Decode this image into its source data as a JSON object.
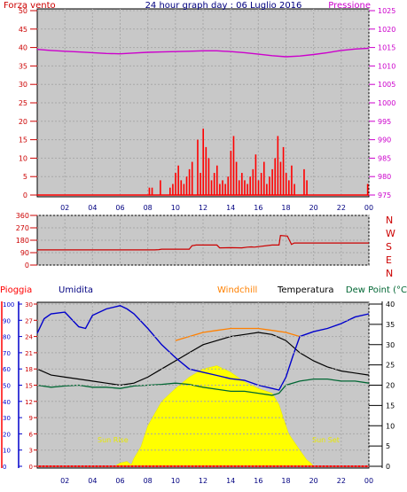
{
  "header": {
    "wind_label": "Forza vento",
    "title": "24 hour graph day : 06 Luglio 2016",
    "pressure_label": "Pressione"
  },
  "legend": {
    "rain": "Pioggia",
    "humidity": "Umidita",
    "windchill": "Windchill",
    "temperature": "Temperatura",
    "dewpoint": "Dew Point (°C"
  },
  "annotations": {
    "sunrise": "Sun Rise",
    "sunset": "Sun Set"
  },
  "x_ticks": [
    "02",
    "04",
    "06",
    "08",
    "10",
    "12",
    "14",
    "16",
    "18",
    "20",
    "22",
    "00"
  ],
  "colors": {
    "wind": "#ff0000",
    "pressure": "#cc00cc",
    "direction": "#cc0000",
    "humidity": "#0000cc",
    "temperature": "#000000",
    "windchill": "#ff8000",
    "dewpoint": "#006633",
    "solar": "#ffff00",
    "rain": "#ff0000"
  },
  "chart_data": [
    {
      "type": "bar",
      "title": "24 hour graph day : 06 Luglio 2016",
      "xlim": [
        0,
        24
      ],
      "x_ticks": [
        "02",
        "04",
        "06",
        "08",
        "10",
        "12",
        "14",
        "16",
        "18",
        "20",
        "22",
        "00"
      ],
      "y_left": {
        "label": "Forza vento",
        "range": [
          0,
          50
        ],
        "ticks": [
          "0",
          "5",
          "10",
          "15",
          "20",
          "25",
          "30",
          "35",
          "40",
          "45",
          "50"
        ]
      },
      "y_right": {
        "label": "Pressione",
        "range": [
          975,
          1025
        ],
        "ticks": [
          "975",
          "980",
          "985",
          "990",
          "995",
          "1000",
          "1005",
          "1010",
          "1015",
          "1020",
          "1025"
        ]
      },
      "series": [
        {
          "name": "Forza vento",
          "type": "bar",
          "x": [
            8.1,
            8.3,
            8.9,
            9.6,
            9.8,
            10.0,
            10.2,
            10.4,
            10.6,
            10.8,
            11.0,
            11.2,
            11.6,
            11.8,
            12.0,
            12.2,
            12.4,
            12.6,
            12.8,
            13.0,
            13.2,
            13.4,
            13.6,
            13.8,
            14.0,
            14.2,
            14.4,
            14.6,
            14.8,
            15.0,
            15.2,
            15.4,
            15.6,
            15.8,
            16.0,
            16.2,
            16.4,
            16.6,
            16.8,
            17.0,
            17.2,
            17.4,
            17.6,
            17.8,
            18.0,
            18.2,
            18.4,
            18.6,
            19.3,
            19.5,
            23.9
          ],
          "values": [
            2,
            2,
            4,
            2,
            3,
            6,
            8,
            4,
            3,
            5,
            7,
            9,
            15,
            6,
            18,
            13,
            10,
            4,
            6,
            8,
            3,
            4,
            3,
            5,
            12,
            16,
            9,
            4,
            6,
            4,
            3,
            5,
            7,
            11,
            4,
            6,
            9,
            3,
            5,
            7,
            10,
            16,
            9,
            13,
            6,
            4,
            8,
            3,
            7,
            4,
            3
          ]
        },
        {
          "name": "Pressione",
          "type": "line",
          "x": [
            0,
            1,
            2,
            3,
            4,
            5,
            6,
            7,
            8,
            9,
            10,
            11,
            12,
            13,
            14,
            15,
            16,
            17,
            18,
            19,
            20,
            21,
            22,
            23,
            24
          ],
          "values": [
            1014.5,
            1014.2,
            1014.0,
            1013.8,
            1013.6,
            1013.4,
            1013.3,
            1013.5,
            1013.7,
            1013.8,
            1013.9,
            1014.0,
            1014.1,
            1014.1,
            1013.9,
            1013.6,
            1013.2,
            1012.8,
            1012.5,
            1012.7,
            1013.1,
            1013.6,
            1014.2,
            1014.6,
            1014.8
          ]
        }
      ]
    },
    {
      "type": "line",
      "xlim": [
        0,
        24
      ],
      "y_left": {
        "range": [
          0,
          360
        ],
        "ticks": [
          "0",
          "90",
          "180",
          "270",
          "360"
        ]
      },
      "y_right": {
        "ticks": [
          "N",
          "W",
          "S",
          "E",
          "N"
        ]
      },
      "series": [
        {
          "name": "Direzione vento",
          "x": [
            0,
            8.5,
            8.8,
            9.0,
            11.0,
            11.2,
            11.5,
            13.0,
            13.2,
            14.0,
            14.8,
            15.2,
            15.5,
            15.7,
            17.0,
            17.5,
            17.6,
            18.1,
            18.3,
            18.4,
            18.6,
            24
          ],
          "values": [
            110,
            110,
            112,
            115,
            115,
            140,
            145,
            145,
            125,
            126,
            125,
            130,
            132,
            130,
            145,
            145,
            215,
            210,
            170,
            150,
            160,
            160
          ]
        }
      ]
    },
    {
      "type": "line",
      "xlim": [
        0,
        24
      ],
      "y_left_rain": {
        "label": "Pioggia",
        "range": [
          0,
          30
        ],
        "ticks": [
          "0",
          "3",
          "6",
          "9",
          "12",
          "15",
          "18",
          "21",
          "24",
          "27",
          "30"
        ]
      },
      "y_left_humidity": {
        "label": "Umidita",
        "range": [
          0,
          100
        ],
        "ticks": [
          "0",
          "10",
          "20",
          "30",
          "40",
          "50",
          "60",
          "70",
          "80",
          "90",
          "100"
        ]
      },
      "y_right": {
        "label": "Temperatura",
        "range": [
          0,
          40
        ],
        "ticks": [
          "0",
          "5",
          "10",
          "15",
          "20",
          "25",
          "30",
          "35",
          "40"
        ]
      },
      "annotations": [
        "Sun Rise",
        "Sun Set"
      ],
      "series": [
        {
          "name": "Umidita",
          "axis": "humidity",
          "x": [
            0,
            0.5,
            1,
            2,
            3,
            3.5,
            4,
            5,
            6,
            6.5,
            7,
            8,
            9,
            10,
            11,
            12,
            13,
            14,
            15,
            16,
            17,
            17.5,
            18,
            18.5,
            19,
            20,
            21,
            22,
            23,
            24
          ],
          "values": [
            82,
            91,
            94,
            95,
            86,
            85,
            93,
            97,
            99,
            97,
            94,
            85,
            75,
            67,
            60,
            58,
            56,
            54,
            53,
            50,
            48,
            47,
            55,
            68,
            80,
            83,
            85,
            88,
            92,
            94
          ]
        },
        {
          "name": "Temperatura",
          "axis": "temp",
          "x": [
            0,
            1,
            2,
            3,
            4,
            5,
            6,
            7,
            8,
            9,
            10,
            11,
            12,
            13,
            14,
            15,
            16,
            17,
            18,
            19,
            20,
            21,
            22,
            23,
            24
          ],
          "values": [
            24,
            22.5,
            22,
            21.5,
            21,
            20.5,
            20,
            20.5,
            22,
            24,
            26,
            28,
            30,
            31,
            32,
            32.5,
            33,
            32.5,
            31,
            28,
            26,
            24.5,
            23.5,
            23,
            22.5
          ]
        },
        {
          "name": "Windchill",
          "axis": "temp",
          "x": [
            10,
            11,
            12,
            13,
            14,
            15,
            16,
            17,
            18,
            19
          ],
          "values": [
            31,
            32,
            33,
            33.5,
            34,
            34,
            34,
            33.5,
            33,
            32
          ]
        },
        {
          "name": "Dew Point",
          "axis": "temp",
          "x": [
            0,
            1,
            2,
            3,
            4,
            5,
            6,
            7,
            8,
            9,
            10,
            11,
            12,
            13,
            14,
            15,
            16,
            17,
            17.5,
            18,
            19,
            20,
            21,
            22,
            23,
            24
          ],
          "values": [
            20,
            19.5,
            19.8,
            20,
            19.5,
            19.5,
            19.2,
            19.8,
            20,
            20.2,
            20.5,
            20.2,
            19.5,
            19,
            18.5,
            18.5,
            18,
            17.5,
            18,
            20,
            21,
            21.5,
            21.5,
            21,
            21,
            20.5
          ]
        },
        {
          "name": "Solar",
          "axis": "humidity",
          "type": "area",
          "x": [
            0,
            5.6,
            6.0,
            6.5,
            6.8,
            7.0,
            7.5,
            8,
            9,
            10,
            11,
            12,
            13,
            14,
            15,
            16,
            17,
            17.5,
            17.8,
            18.2,
            19,
            19.5,
            19.8,
            20,
            24
          ],
          "values": [
            0,
            0,
            2,
            3,
            1,
            5,
            12,
            25,
            40,
            48,
            55,
            60,
            62,
            58,
            52,
            48,
            45,
            38,
            30,
            20,
            10,
            4,
            2,
            0,
            0
          ]
        },
        {
          "name": "Pioggia",
          "axis": "rain",
          "x": [
            0,
            24
          ],
          "values": [
            0,
            0
          ]
        }
      ]
    }
  ]
}
